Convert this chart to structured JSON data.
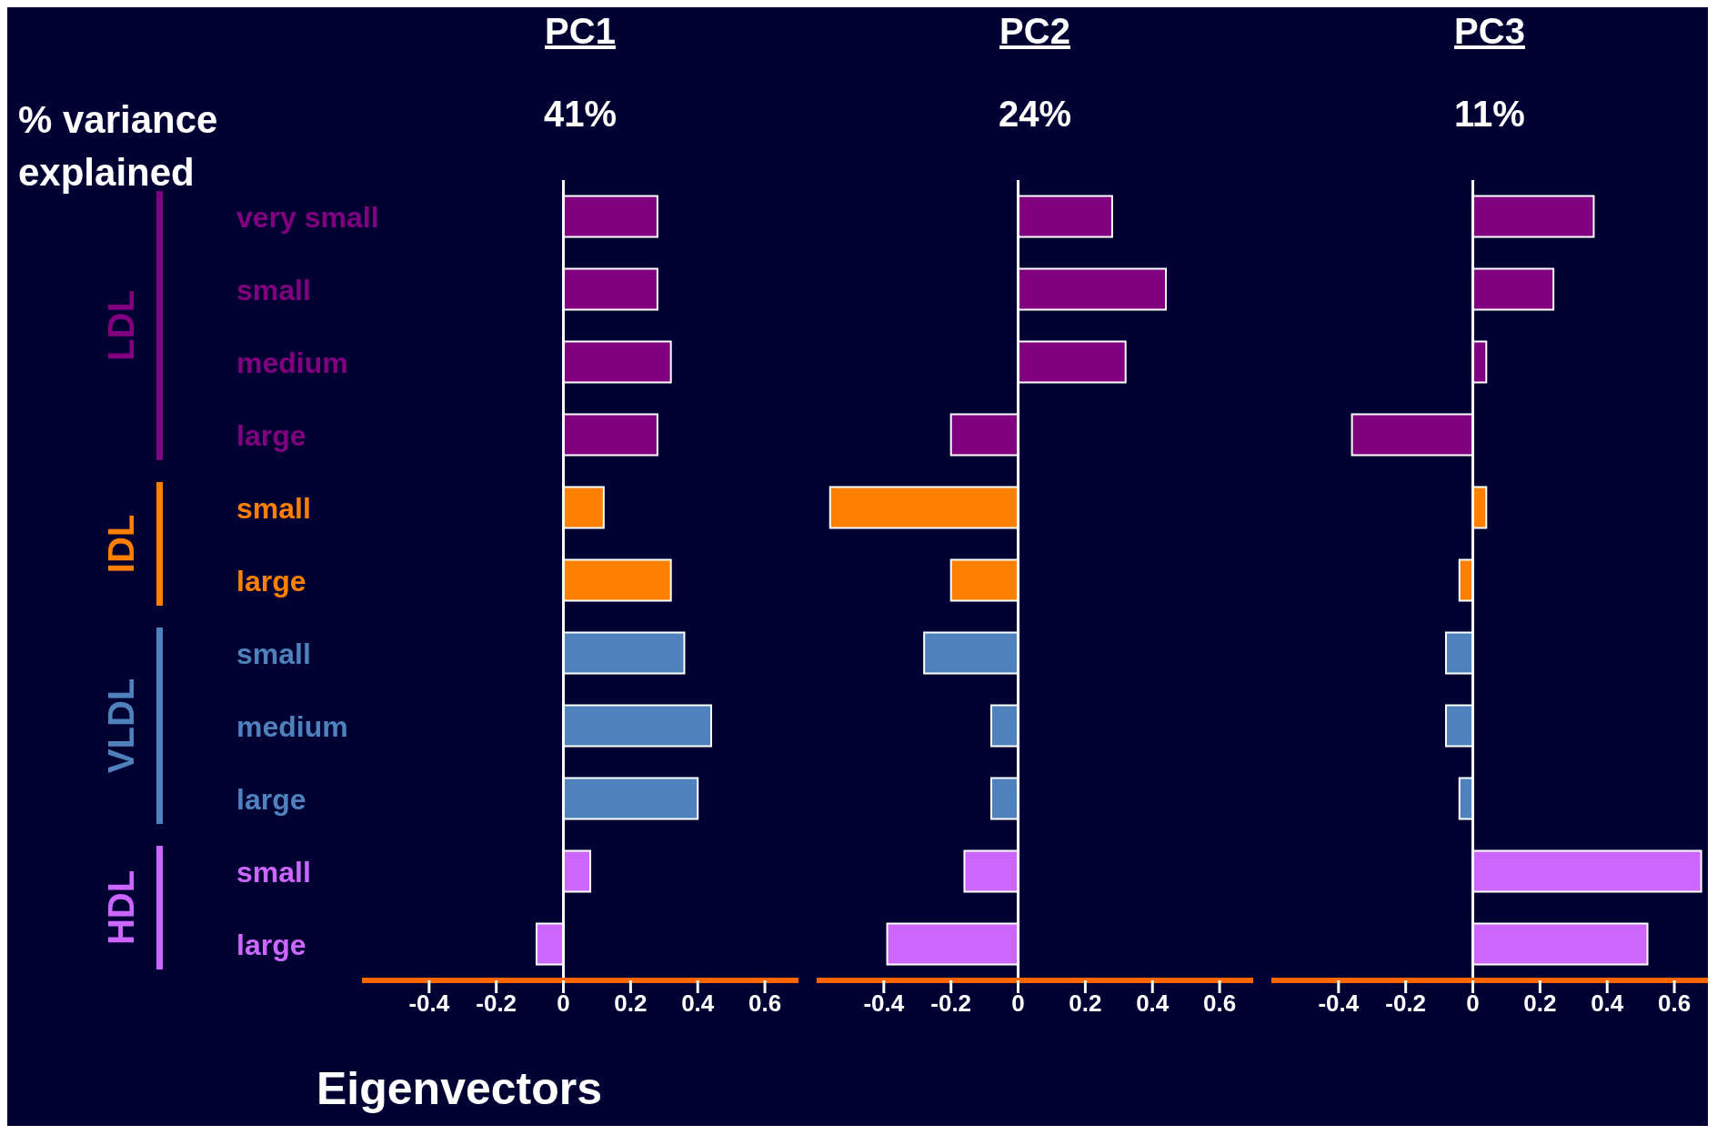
{
  "chart_data": [
    {
      "type": "bar",
      "orientation": "horizontal",
      "title": "PC1",
      "subtitle": "41%",
      "xlabel": "Eigenvectors",
      "annotations": [
        "% variance explained",
        "LDL",
        "IDL",
        "VLDL",
        "HDL"
      ],
      "categories": [
        "very small",
        "small",
        "medium",
        "large",
        "small",
        "large",
        "small",
        "medium",
        "large",
        "small",
        "large"
      ],
      "values": [
        0.28,
        0.28,
        0.32,
        0.28,
        0.12,
        0.32,
        0.36,
        0.44,
        0.4,
        0.08,
        -0.08
      ],
      "colors": [
        "#800080",
        "#800080",
        "#800080",
        "#800080",
        "#ff8000",
        "#ff8000",
        "#4f81bd",
        "#4f81bd",
        "#4f81bd",
        "#cc66ff",
        "#cc66ff"
      ],
      "xlim": [
        -0.6,
        0.7
      ],
      "xticks": [
        -0.4,
        -0.2,
        0,
        0.2,
        0.4,
        0.6
      ],
      "ref_lines": [
        {
          "axis": "x",
          "value": 0,
          "color": "#ffffff"
        }
      ]
    },
    {
      "type": "bar",
      "orientation": "horizontal",
      "title": "PC2",
      "subtitle": "24%",
      "tick_labels": "x",
      "categories": [
        null,
        null,
        null,
        null,
        null,
        null,
        null,
        null,
        null,
        null,
        null
      ],
      "values": [
        0.28,
        0.44,
        0.32,
        -0.2,
        -0.56,
        -0.2,
        -0.28,
        -0.08,
        -0.08,
        -0.16,
        -0.39
      ],
      "colors": [
        "#800080",
        "#800080",
        "#800080",
        "#800080",
        "#ff8000",
        "#ff8000",
        "#4f81bd",
        "#4f81bd",
        "#4f81bd",
        "#cc66ff",
        "#cc66ff"
      ],
      "xlim": [
        -0.6,
        0.7
      ],
      "xticks": [
        -0.4,
        -0.2,
        0,
        0.2,
        0.4,
        0.6
      ],
      "ref_lines": [
        {
          "axis": "x",
          "value": 0,
          "color": "#ffffff"
        }
      ]
    },
    {
      "type": "bar",
      "orientation": "horizontal",
      "title": "PC3",
      "subtitle": "11%",
      "tick_labels": "x",
      "categories": [
        null,
        null,
        null,
        null,
        null,
        null,
        null,
        null,
        null,
        null,
        null
      ],
      "values": [
        0.36,
        0.24,
        0.04,
        -0.36,
        0.04,
        -0.04,
        -0.08,
        -0.08,
        -0.04,
        0.68,
        0.52
      ],
      "colors": [
        "#800080",
        "#800080",
        "#800080",
        "#800080",
        "#ff8000",
        "#ff8000",
        "#4f81bd",
        "#4f81bd",
        "#4f81bd",
        "#cc66ff",
        "#cc66ff"
      ],
      "xlim": [
        -0.6,
        0.7
      ],
      "xticks": [
        -0.4,
        -0.2,
        0,
        0.2,
        0.4,
        0.6
      ],
      "ref_lines": [
        {
          "axis": "x",
          "value": 0,
          "color": "#ffffff"
        }
      ]
    }
  ]
}
